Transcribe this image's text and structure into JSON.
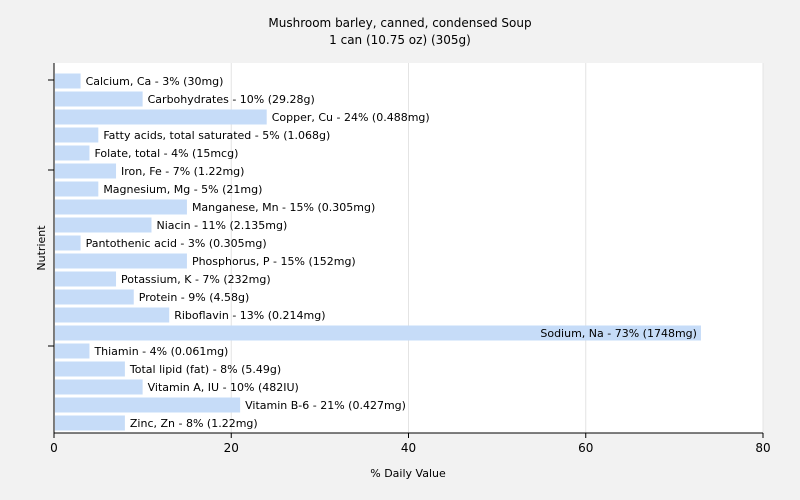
{
  "chart_data": {
    "type": "bar",
    "orientation": "horizontal",
    "title": "Mushroom barley, canned, condensed Soup",
    "subtitle": "1 can (10.75 oz) (305g)",
    "xlabel": "% Daily Value",
    "ylabel": "Nutrient",
    "xlim": [
      0,
      80
    ],
    "xticks": [
      0,
      20,
      40,
      60,
      80
    ],
    "grid": true,
    "bar_color": "#c6dcf8",
    "categories": [
      "Calcium, Ca",
      "Carbohydrates",
      "Copper, Cu",
      "Fatty acids, total saturated",
      "Folate, total",
      "Iron, Fe",
      "Magnesium, Mg",
      "Manganese, Mn",
      "Niacin",
      "Pantothenic acid",
      "Phosphorus, P",
      "Potassium, K",
      "Protein",
      "Riboflavin",
      "Sodium, Na",
      "Thiamin",
      "Total lipid (fat)",
      "Vitamin A, IU",
      "Vitamin B-6",
      "Zinc, Zn"
    ],
    "values": [
      3,
      10,
      24,
      5,
      4,
      7,
      5,
      15,
      11,
      3,
      15,
      7,
      9,
      13,
      73,
      4,
      8,
      10,
      21,
      8
    ],
    "labels": [
      "Calcium, Ca - 3% (30mg)",
      "Carbohydrates - 10% (29.28g)",
      "Copper, Cu - 24% (0.488mg)",
      "Fatty acids, total saturated - 5% (1.068g)",
      "Folate, total - 4% (15mcg)",
      "Iron, Fe - 7% (1.22mg)",
      "Magnesium, Mg - 5% (21mg)",
      "Manganese, Mn - 15% (0.305mg)",
      "Niacin - 11% (2.135mg)",
      "Pantothenic acid - 3% (0.305mg)",
      "Phosphorus, P - 15% (152mg)",
      "Potassium, K - 7% (232mg)",
      "Protein - 9% (4.58g)",
      "Riboflavin - 13% (0.214mg)",
      "Sodium, Na - 73% (1748mg)",
      "Thiamin - 4% (0.061mg)",
      "Total lipid (fat) - 8% (5.49g)",
      "Vitamin A, IU - 10% (482IU)",
      "Vitamin B-6 - 21% (0.427mg)",
      "Zinc, Zn - 8% (1.22mg)"
    ]
  }
}
